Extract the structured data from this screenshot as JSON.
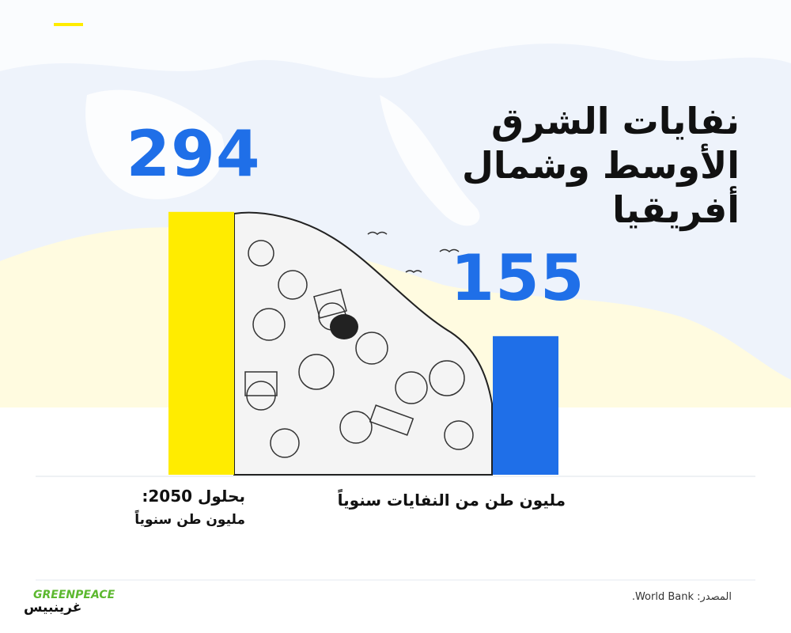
{
  "chart_data": {
    "type": "bar",
    "title": [
      "نفايات الشرق",
      "الأوسط وشمال",
      "أفريقيا"
    ],
    "categories": [
      [
        "بحلول 2050:",
        "مليون طن سنوياً"
      ],
      [
        "مليون طن من النفايات سنوياً"
      ]
    ],
    "values": [
      294,
      155
    ],
    "colors": [
      "#ffec00",
      "#1f6fe8"
    ],
    "source": "المصدر: World Bank.",
    "logo": {
      "latin": "GREENPEACE",
      "arabic": "غرينبيس"
    }
  }
}
